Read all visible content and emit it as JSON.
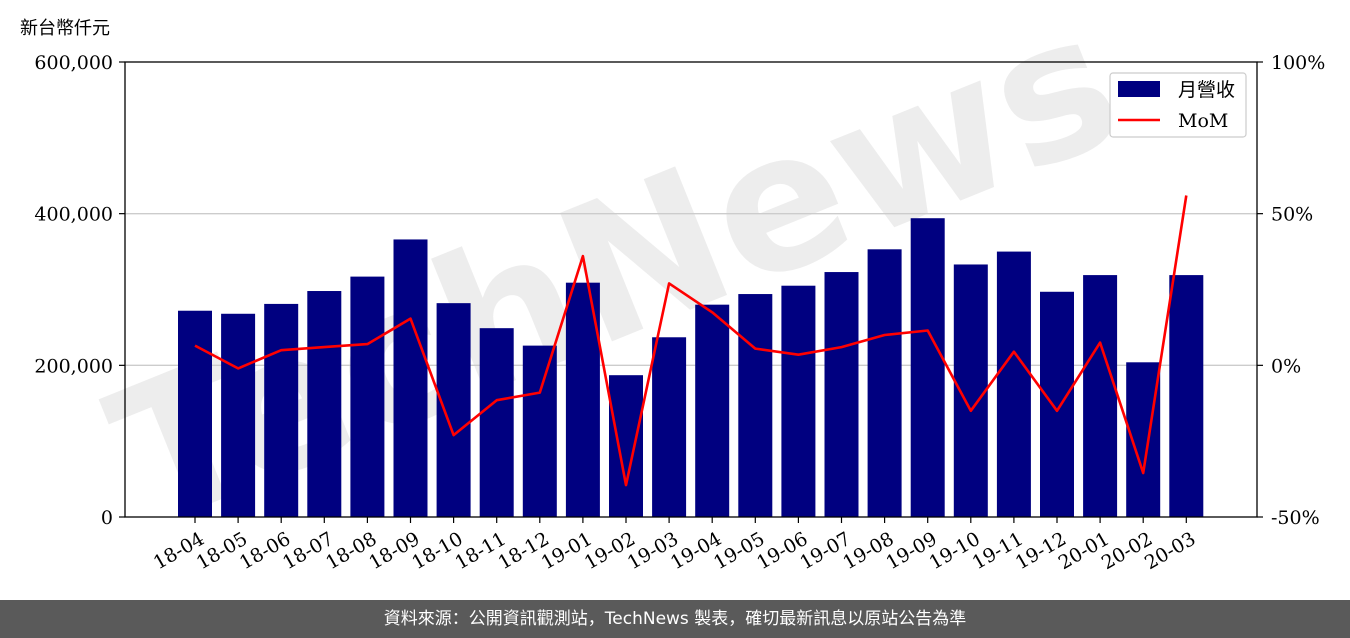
{
  "unit_label": "新台幣仟元",
  "footer_text": "資料來源：公開資訊觀測站，TechNews 製表，確切最新訊息以原站公告為準",
  "watermark_text": "TechNews",
  "colors": {
    "bar": "#000080",
    "line": "#ff0000",
    "grid": "#cccccc",
    "footer_bg": "#5a5a5a"
  },
  "chart_data": {
    "type": "bar",
    "categories": [
      "18-04",
      "18-05",
      "18-06",
      "18-07",
      "18-08",
      "18-09",
      "18-10",
      "18-11",
      "18-12",
      "19-01",
      "19-02",
      "19-03",
      "19-04",
      "19-05",
      "19-06",
      "19-07",
      "19-08",
      "19-09",
      "19-10",
      "19-11",
      "19-12",
      "20-01",
      "20-02",
      "20-03"
    ],
    "series": [
      {
        "name": "月營收",
        "type": "bar",
        "axis": "left",
        "values": [
          272000,
          268000,
          281000,
          298000,
          317000,
          366000,
          282000,
          249000,
          226000,
          309000,
          187000,
          237000,
          280000,
          294000,
          305000,
          323000,
          353000,
          394000,
          333000,
          350000,
          297000,
          319000,
          204000,
          319000
        ]
      },
      {
        "name": "MoM",
        "type": "line",
        "axis": "right",
        "values": [
          6.5,
          -1.0,
          5.0,
          6.0,
          7.0,
          15.4,
          -23.0,
          -11.5,
          -9.0,
          36.0,
          -39.5,
          27.0,
          17.5,
          5.5,
          3.5,
          6.0,
          10.0,
          11.5,
          -15.0,
          4.5,
          -15.0,
          7.5,
          -35.5,
          56.0
        ]
      }
    ],
    "yaxis_left": {
      "ticks": [
        "0",
        "200,000",
        "400,000",
        "600,000"
      ],
      "ylim": [
        0,
        600000
      ]
    },
    "yaxis_right": {
      "ticks": [
        "-50%",
        "0%",
        "50%",
        "100%"
      ],
      "ylim": [
        -50,
        100
      ]
    },
    "grid": "horizontal",
    "legend": {
      "position": "top-right",
      "entries": [
        "月營收",
        "MoM"
      ]
    }
  }
}
